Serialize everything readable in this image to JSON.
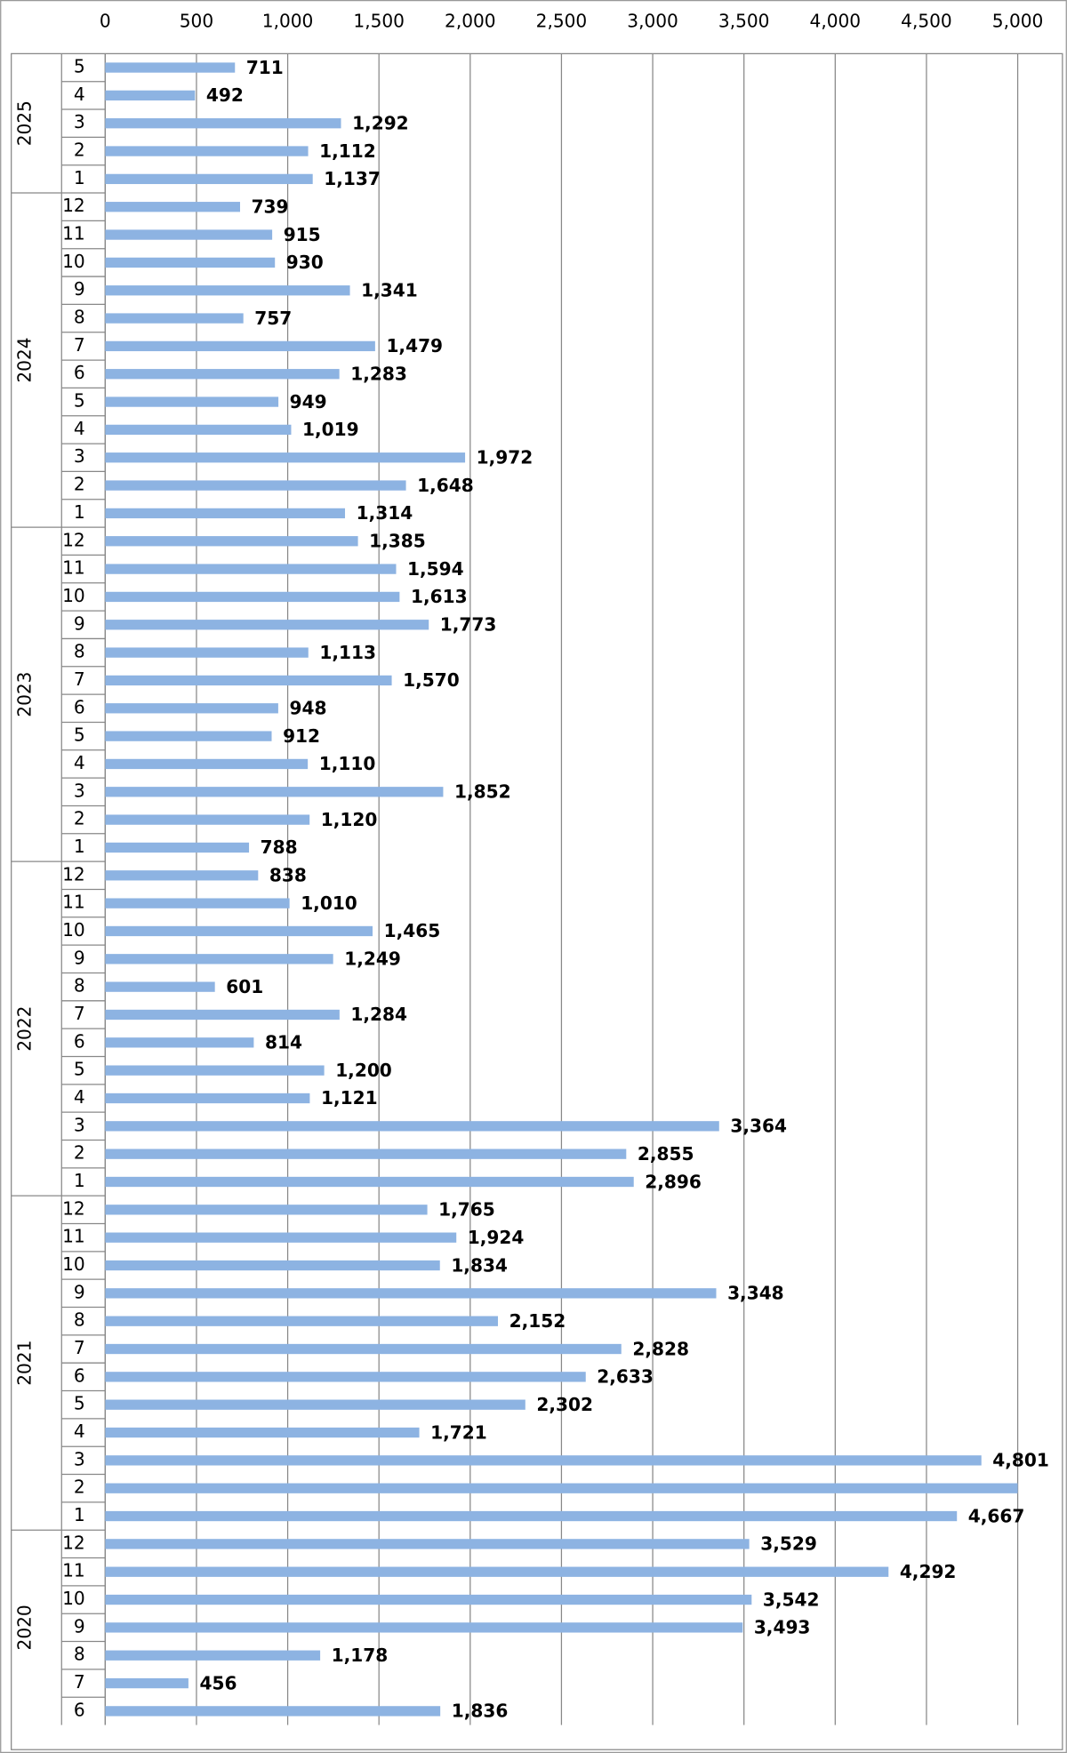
{
  "chart_data": {
    "type": "bar",
    "orientation": "horizontal",
    "color": "#8db3e2",
    "grid": true,
    "xlim": [
      0,
      5000
    ],
    "xticks": [
      0,
      500,
      {
        "value": 1000,
        "label": "1,000"
      },
      {
        "value": 1500,
        "label": "1,500"
      },
      {
        "value": 2000,
        "label": "2,000"
      },
      {
        "value": 2500,
        "label": "2,500"
      },
      {
        "value": 3000,
        "label": "3,000"
      },
      {
        "value": 3500,
        "label": "3,500"
      },
      {
        "value": 4000,
        "label": "4,000"
      },
      {
        "value": 4500,
        "label": "4,500"
      },
      {
        "value": 5000,
        "label": "5,000"
      }
    ],
    "groups": [
      {
        "label": "2025",
        "months": [
          "5",
          "4",
          "3",
          "2",
          "1"
        ]
      },
      {
        "label": "2024",
        "months": [
          "12",
          "11",
          "10",
          "9",
          "8",
          "7",
          "6",
          "5",
          "4",
          "3",
          "2",
          "1"
        ]
      },
      {
        "label": "2023",
        "months": [
          "12",
          "11",
          "10",
          "9",
          "8",
          "7",
          "6",
          "5",
          "4",
          "3",
          "2",
          "1"
        ]
      },
      {
        "label": "2022",
        "months": [
          "12",
          "11",
          "10",
          "9",
          "8",
          "7",
          "6",
          "5",
          "4",
          "3",
          "2",
          "1"
        ]
      },
      {
        "label": "2021",
        "months": [
          "12",
          "11",
          "10",
          "9",
          "8",
          "7",
          "6",
          "5",
          "4",
          "3",
          "2",
          "1"
        ]
      },
      {
        "label": "2020",
        "months": [
          "12",
          "11",
          "10",
          "9",
          "8",
          "7",
          "6"
        ]
      }
    ],
    "values": [
      711,
      492,
      1292,
      1112,
      1137,
      739,
      915,
      930,
      1341,
      757,
      1479,
      1283,
      949,
      1019,
      1972,
      1648,
      1314,
      1385,
      1594,
      1613,
      1773,
      1113,
      1570,
      948,
      912,
      1110,
      1852,
      1120,
      788,
      838,
      1010,
      1465,
      1249,
      601,
      1284,
      814,
      1200,
      1121,
      3364,
      2855,
      2896,
      1765,
      1924,
      1834,
      3348,
      2152,
      2828,
      2633,
      2302,
      1721,
      4801,
      5000,
      4667,
      3529,
      4292,
      3542,
      3493,
      1178,
      456,
      1836
    ],
    "value_labels": [
      "711",
      "492",
      "1,292",
      "1,112",
      "1,137",
      "739",
      "915",
      "930",
      "1,341",
      "757",
      "1,479",
      "1,283",
      "949",
      "1,019",
      "1,972",
      "1,648",
      "1,314",
      "1,385",
      "1,594",
      "1,613",
      "1,773",
      "1,113",
      "1,570",
      "948",
      "912",
      "1,110",
      "1,852",
      "1,120",
      "788",
      "838",
      "1,010",
      "1,465",
      "1,249",
      "601",
      "1,284",
      "814",
      "1,200",
      "1,121",
      "3,364",
      "2,855",
      "2,896",
      "1,765",
      "1,924",
      "1,834",
      "3,348",
      "2,152",
      "2,828",
      "2,633",
      "2,302",
      "1,721",
      "4,801",
      null,
      "4,667",
      "3,529",
      "4,292",
      "3,542",
      "3,493",
      "1,178",
      "456",
      "1,836"
    ]
  }
}
